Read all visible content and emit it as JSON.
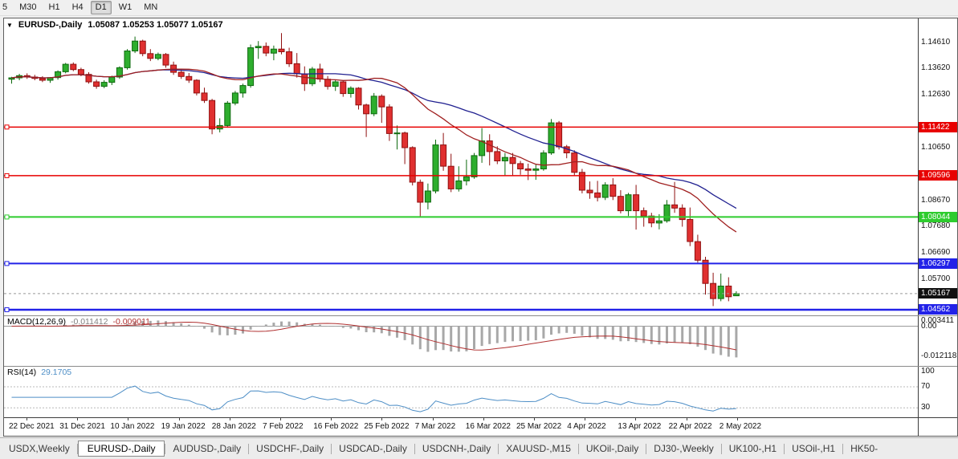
{
  "toolbar": {
    "buttons": [
      "5",
      "M30",
      "H1",
      "H4",
      "D1",
      "W1",
      "MN"
    ],
    "active": "D1"
  },
  "chart": {
    "menu_icon": "▼",
    "title": "EURUSD-,Daily",
    "ohlc": "1.05087 1.05253 1.05077 1.05167"
  },
  "chart_data": {
    "type": "candlestick",
    "symbol": "EURUSD",
    "timeframe": "Daily",
    "ylim": [
      1.0435,
      1.155
    ],
    "candle_colors": {
      "up": "#2eae2e",
      "up_stroke": "#0e6a0e",
      "down": "#e03030",
      "down_stroke": "#8f1010"
    },
    "moving_averages": [
      {
        "name": "ma-slow-blue",
        "type": "sma",
        "period": 30,
        "color": "#202090"
      },
      {
        "name": "ma-fast-red",
        "type": "sma",
        "period": 20,
        "color": "#a02020"
      }
    ],
    "hlines": [
      {
        "value": 1.11422,
        "label": "1.11422",
        "color": "#e80000",
        "width": 1.5
      },
      {
        "value": 1.09596,
        "label": "1.09596",
        "color": "#e80000",
        "width": 1.5
      },
      {
        "value": 1.08044,
        "label": "1.08044",
        "color": "#2ecc2e",
        "width": 2
      },
      {
        "value": 1.06297,
        "label": "1.06297",
        "color": "#2222e8",
        "width": 2
      },
      {
        "value": 1.04562,
        "label": "1.04562",
        "color": "#2222e8",
        "width": 2.5
      }
    ],
    "current_price": {
      "value": 1.05167,
      "label": "1.05167",
      "badge_color": "#101010"
    },
    "price_axis_labels": [
      "1.14610",
      "1.13620",
      "1.12630",
      "1.10650",
      "1.08670",
      "1.07680",
      "1.06690",
      "1.05700"
    ],
    "date_labels": [
      "22 Dec 2021",
      "31 Dec 2021",
      "10 Jan 2022",
      "19 Jan 2022",
      "28 Jan 2022",
      "7 Feb 2022",
      "16 Feb 2022",
      "25 Feb 2022",
      "7 Mar 2022",
      "16 Mar 2022",
      "25 Mar 2022",
      "4 Apr 2022",
      "13 Apr 2022",
      "22 Apr 2022",
      "2 May 2022"
    ],
    "ohlc": [
      [
        1.1322,
        1.1331,
        1.1305,
        1.1327
      ],
      [
        1.1327,
        1.1342,
        1.1318,
        1.1335
      ],
      [
        1.1335,
        1.1344,
        1.1323,
        1.133
      ],
      [
        1.133,
        1.1338,
        1.1318,
        1.1325
      ],
      [
        1.1325,
        1.1333,
        1.1311,
        1.1318
      ],
      [
        1.1318,
        1.133,
        1.1308,
        1.1328
      ],
      [
        1.1328,
        1.1355,
        1.132,
        1.135
      ],
      [
        1.135,
        1.1383,
        1.1344,
        1.1378
      ],
      [
        1.1378,
        1.1385,
        1.1352,
        1.1358
      ],
      [
        1.1358,
        1.1365,
        1.1333,
        1.134
      ],
      [
        1.134,
        1.1348,
        1.1305,
        1.1312
      ],
      [
        1.1312,
        1.132,
        1.1286,
        1.1295
      ],
      [
        1.1295,
        1.1318,
        1.1288,
        1.131
      ],
      [
        1.131,
        1.1335,
        1.13,
        1.133
      ],
      [
        1.133,
        1.137,
        1.1323,
        1.1365
      ],
      [
        1.1365,
        1.1435,
        1.1358,
        1.1428
      ],
      [
        1.1428,
        1.1482,
        1.142,
        1.1465
      ],
      [
        1.1465,
        1.147,
        1.1408,
        1.1418
      ],
      [
        1.1418,
        1.1435,
        1.139,
        1.14
      ],
      [
        1.14,
        1.1422,
        1.1393,
        1.1415
      ],
      [
        1.1415,
        1.142,
        1.1365,
        1.1375
      ],
      [
        1.1375,
        1.1388,
        1.1338,
        1.1348
      ],
      [
        1.1348,
        1.136,
        1.1323,
        1.1332
      ],
      [
        1.1332,
        1.1345,
        1.1308,
        1.1318
      ],
      [
        1.1318,
        1.1322,
        1.1261,
        1.127
      ],
      [
        1.127,
        1.129,
        1.1233,
        1.1242
      ],
      [
        1.1242,
        1.1248,
        1.1115,
        1.1135
      ],
      [
        1.1135,
        1.1175,
        1.1122,
        1.1148
      ],
      [
        1.1148,
        1.124,
        1.114,
        1.1232
      ],
      [
        1.1232,
        1.1278,
        1.1224,
        1.127
      ],
      [
        1.127,
        1.1305,
        1.1253,
        1.1298
      ],
      [
        1.1298,
        1.1452,
        1.129,
        1.144
      ],
      [
        1.144,
        1.1465,
        1.1398,
        1.1445
      ],
      [
        1.1445,
        1.146,
        1.1408,
        1.142
      ],
      [
        1.142,
        1.1448,
        1.1393,
        1.1435
      ],
      [
        1.1435,
        1.1495,
        1.1415,
        1.1425
      ],
      [
        1.1425,
        1.144,
        1.1368,
        1.138
      ],
      [
        1.138,
        1.142,
        1.1328,
        1.1342
      ],
      [
        1.1342,
        1.137,
        1.1278,
        1.1305
      ],
      [
        1.1305,
        1.1368,
        1.1296,
        1.136
      ],
      [
        1.136,
        1.138,
        1.1311,
        1.1322
      ],
      [
        1.1322,
        1.1334,
        1.1283,
        1.1295
      ],
      [
        1.1295,
        1.132,
        1.1278,
        1.1312
      ],
      [
        1.1312,
        1.1318,
        1.1256,
        1.1268
      ],
      [
        1.1268,
        1.1295,
        1.1253,
        1.1288
      ],
      [
        1.1288,
        1.1292,
        1.1208,
        1.1225
      ],
      [
        1.1225,
        1.123,
        1.1105,
        1.1192
      ],
      [
        1.1192,
        1.127,
        1.1183,
        1.1258
      ],
      [
        1.1258,
        1.1265,
        1.1158,
        1.1218
      ],
      [
        1.1218,
        1.1228,
        1.109,
        1.1118
      ],
      [
        1.1118,
        1.1148,
        1.1058,
        1.112
      ],
      [
        1.112,
        1.1125,
        1.1003,
        1.1065
      ],
      [
        1.1065,
        1.107,
        1.0923,
        1.0935
      ],
      [
        1.0935,
        1.0945,
        1.0806,
        1.086
      ],
      [
        1.086,
        1.093,
        1.0833,
        1.0902
      ],
      [
        1.0902,
        1.1095,
        1.0893,
        1.1075
      ],
      [
        1.1075,
        1.112,
        1.0978,
        1.0995
      ],
      [
        1.0995,
        1.1042,
        1.0898,
        1.091
      ],
      [
        1.091,
        1.0995,
        1.09,
        1.094
      ],
      [
        1.094,
        1.102,
        1.0923,
        1.0955
      ],
      [
        1.0955,
        1.1045,
        1.0948,
        1.1035
      ],
      [
        1.1035,
        1.1138,
        1.1008,
        1.109
      ],
      [
        1.109,
        1.1115,
        1.0998,
        1.105
      ],
      [
        1.105,
        1.107,
        1.1003,
        1.1015
      ],
      [
        1.1015,
        1.1045,
        1.0958,
        1.1028
      ],
      [
        1.1028,
        1.1045,
        1.0961,
        1.1005
      ],
      [
        1.1005,
        1.1015,
        1.0963,
        1.0985
      ],
      [
        1.0985,
        1.1005,
        1.0943,
        1.098
      ],
      [
        1.098,
        1.1,
        1.0944,
        1.0985
      ],
      [
        1.0985,
        1.1055,
        1.0978,
        1.1045
      ],
      [
        1.1045,
        1.1172,
        1.1038,
        1.1158
      ],
      [
        1.1158,
        1.1165,
        1.1058,
        1.1068
      ],
      [
        1.1068,
        1.1075,
        1.1025,
        1.1045
      ],
      [
        1.1045,
        1.1055,
        1.0958,
        1.0972
      ],
      [
        1.0972,
        1.0985,
        1.0893,
        1.0905
      ],
      [
        1.0905,
        1.0938,
        1.0873,
        1.0895
      ],
      [
        1.0895,
        1.094,
        1.0863,
        1.0878
      ],
      [
        1.0878,
        1.0935,
        1.0868,
        1.0925
      ],
      [
        1.0925,
        1.095,
        1.0868,
        1.0882
      ],
      [
        1.0882,
        1.0905,
        1.0818,
        1.0828
      ],
      [
        1.0828,
        1.0895,
        1.0808,
        1.0888
      ],
      [
        1.0888,
        1.0925,
        1.0757,
        1.0828
      ],
      [
        1.0828,
        1.084,
        1.0768,
        1.0808
      ],
      [
        1.0808,
        1.082,
        1.0766,
        1.0782
      ],
      [
        1.0782,
        1.0815,
        1.0758,
        1.079
      ],
      [
        1.079,
        1.0868,
        1.0783,
        1.085
      ],
      [
        1.085,
        1.0936,
        1.082,
        1.0838
      ],
      [
        1.0838,
        1.0852,
        1.0768,
        1.0795
      ],
      [
        1.0795,
        1.084,
        1.0695,
        1.0712
      ],
      [
        1.0712,
        1.0738,
        1.0633,
        1.0642
      ],
      [
        1.0642,
        1.0655,
        1.0513,
        1.0555
      ],
      [
        1.0555,
        1.0595,
        1.047,
        1.0498
      ],
      [
        1.0498,
        1.0592,
        1.0488,
        1.0545
      ],
      [
        1.0545,
        1.0578,
        1.0488,
        1.0505
      ],
      [
        1.05087,
        1.05253,
        1.05077,
        1.05167
      ]
    ],
    "macd": {
      "label": "MACD(12,26,9)",
      "value": "-0.011412",
      "signal_value": "-0.009011",
      "fast": 12,
      "slow": 26,
      "signal": 9,
      "hist_color": "#a8a8a8",
      "signal_color": "#b03030",
      "ylim": [
        -0.0158,
        0.004
      ],
      "axis_labels": [
        {
          "v": 0.003411,
          "label": "0.003411"
        },
        {
          "v": 0,
          "label": "0.00"
        },
        {
          "v": -0.012118,
          "label": "-0.012118"
        }
      ]
    },
    "rsi": {
      "label": "RSI(14)",
      "value": "29.1705",
      "period": 14,
      "color": "#4d8ec6",
      "levels": [
        70,
        30
      ],
      "ylim": [
        12,
        108
      ],
      "axis_labels": [
        {
          "v": 100,
          "label": "100"
        },
        {
          "v": 70,
          "label": "70"
        },
        {
          "v": 30,
          "label": "30"
        }
      ]
    }
  },
  "tabs": {
    "items": [
      "USDX,Weekly",
      "EURUSD-,Daily",
      "AUDUSD-,Daily",
      "USDCHF-,Daily",
      "USDCAD-,Daily",
      "USDCNH-,Daily",
      "XAUUSD-,M15",
      "UKOil-,Daily",
      "DJ30-,Weekly",
      "UK100-,H1",
      "USOil-,H1",
      "HK50-"
    ],
    "active_index": 1
  }
}
